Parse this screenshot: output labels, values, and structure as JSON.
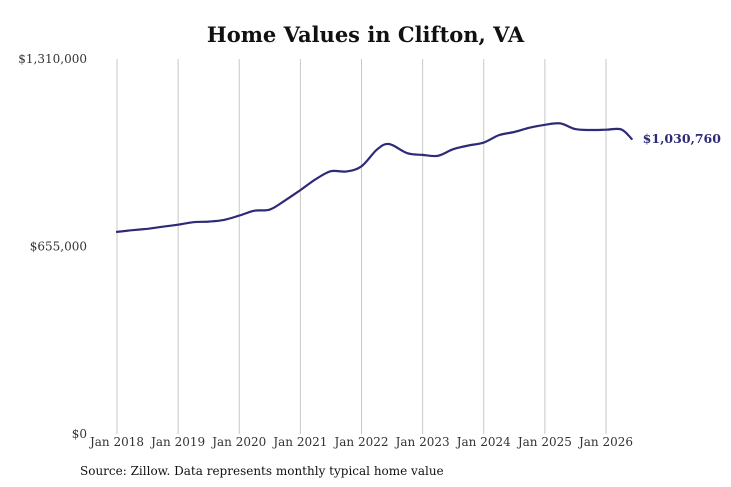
{
  "chart_data": {
    "type": "line",
    "title": "Home Values in Clifton, VA",
    "xlabel": "",
    "ylabel": "",
    "ylim": [
      0,
      1310000
    ],
    "y_ticks": [
      {
        "value": 0,
        "label": "$0"
      },
      {
        "value": 655000,
        "label": "$655,000"
      },
      {
        "value": 1310000,
        "label": "$1,310,000"
      }
    ],
    "x_ticks": [
      {
        "value": 2018,
        "label": "Jan 2018"
      },
      {
        "value": 2019,
        "label": "Jan 2019"
      },
      {
        "value": 2020,
        "label": "Jan 2020"
      },
      {
        "value": 2021,
        "label": "Jan 2021"
      },
      {
        "value": 2022,
        "label": "Jan 2022"
      },
      {
        "value": 2023,
        "label": "Jan 2023"
      },
      {
        "value": 2024,
        "label": "Jan 2024"
      },
      {
        "value": 2025,
        "label": "Jan 2025"
      },
      {
        "value": 2026,
        "label": "Jan 2026"
      }
    ],
    "grid": "vertical",
    "line_color": "#2e2a78",
    "end_label": "$1,030,760",
    "series": [
      {
        "x": [
          2018.0,
          2018.25,
          2018.5,
          2018.75,
          2019.0,
          2019.25,
          2019.5,
          2019.75,
          2020.0,
          2020.25,
          2020.5,
          2020.75,
          2021.0,
          2021.25,
          2021.5,
          2021.75,
          2022.0,
          2022.25,
          2022.45,
          2022.75,
          2023.0,
          2023.25,
          2023.5,
          2023.75,
          2024.0,
          2024.25,
          2024.5,
          2024.75,
          2025.0,
          2025.25,
          2025.5,
          2025.75,
          2026.0,
          2026.25,
          2026.42
        ],
        "values": [
          706000,
          712000,
          717000,
          724000,
          731000,
          740000,
          742000,
          748000,
          763000,
          780000,
          784000,
          816000,
          852000,
          890000,
          918000,
          917000,
          935000,
          993000,
          1013000,
          981000,
          975000,
          972000,
          995000,
          1008000,
          1018000,
          1044000,
          1055000,
          1070000,
          1080000,
          1085000,
          1065000,
          1062000,
          1063000,
          1064000,
          1030760
        ]
      }
    ]
  }
}
